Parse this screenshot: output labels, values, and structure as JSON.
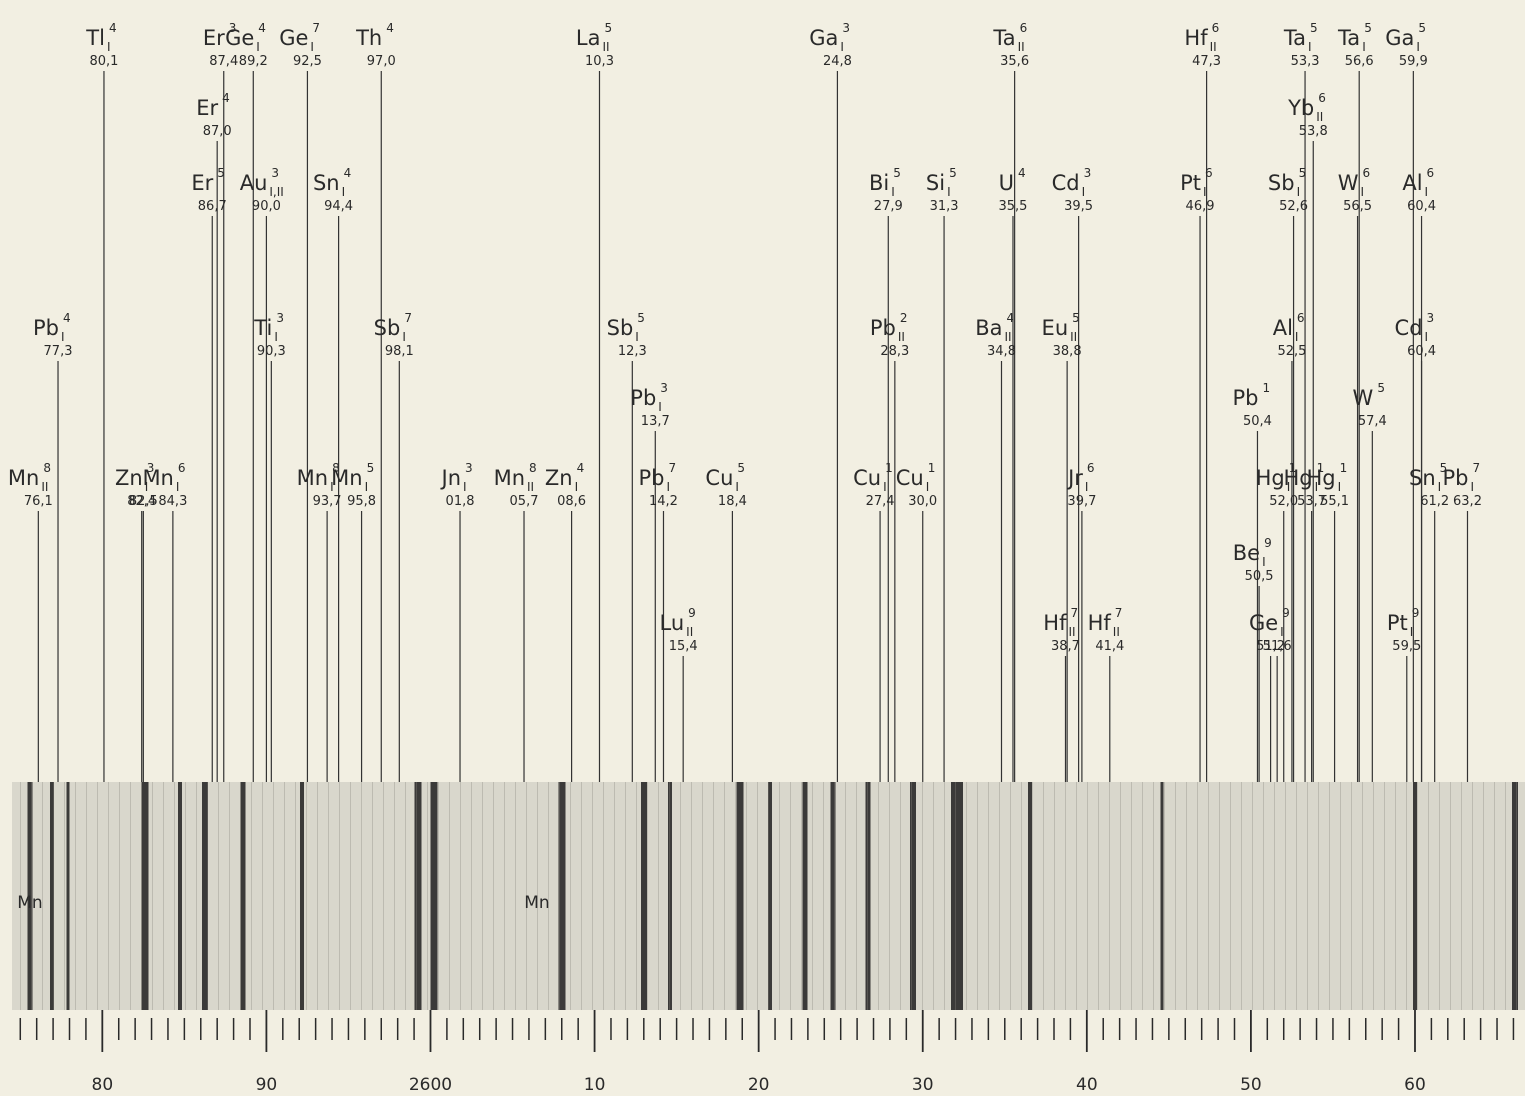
{
  "chart_data": {
    "type": "spectrum",
    "xlim": [
      2574.8,
      2666.4
    ],
    "xticks": [
      {
        "value": 2580,
        "label": "80"
      },
      {
        "value": 2590,
        "label": "90"
      },
      2600,
      {
        "value": 2610,
        "label": "10"
      },
      {
        "value": 2620,
        "label": "20"
      },
      {
        "value": 2630,
        "label": "30"
      },
      {
        "value": 2640,
        "label": "40"
      },
      {
        "value": 2650,
        "label": "50"
      },
      {
        "value": 2660,
        "label": "60"
      }
    ],
    "minor_xticks": [
      2575,
      2576,
      2577,
      2578,
      2579,
      2581,
      2582,
      2583,
      2584,
      2585,
      2586,
      2587,
      2588,
      2589,
      2591,
      2592,
      2593,
      2594,
      2595,
      2596,
      2597,
      2598,
      2599,
      2601,
      2602,
      2603,
      2604,
      2605,
      2606,
      2607,
      2608,
      2609,
      2611,
      2612,
      2613,
      2614,
      2615,
      2616,
      2617,
      2618,
      2619,
      2621,
      2622,
      2623,
      2624,
      2625,
      2626,
      2627,
      2628,
      2629,
      2631,
      2632,
      2633,
      2634,
      2635,
      2636,
      2637,
      2638,
      2639,
      2641,
      2642,
      2643,
      2644,
      2645,
      2646,
      2647,
      2648,
      2649,
      2651,
      2652,
      2653,
      2654,
      2655,
      2656,
      2657,
      2658,
      2659,
      2661,
      2662,
      2663,
      2664,
      2665,
      2666
    ],
    "strip_labels": [
      "Mn",
      "Mn"
    ],
    "lines": [
      {
        "element": "Tl",
        "ion": "I",
        "intensity": 4,
        "wavelength": {
          "value": 2580.1,
          "label": "80,1"
        }
      },
      {
        "element": "Er",
        "intensity": 3,
        "wavelength": {
          "value": 2587.4,
          "label": "87,4"
        }
      },
      {
        "element": "Ge",
        "ion": "I",
        "intensity": 4,
        "wavelength": {
          "value": 2589.2,
          "label": "89,2"
        }
      },
      {
        "element": "Ge",
        "ion": "I",
        "intensity": 7,
        "wavelength": {
          "value": 2592.5,
          "label": "92,5"
        }
      },
      {
        "element": "Th",
        "intensity": 4,
        "wavelength": {
          "value": 2597.0,
          "label": "97,0"
        }
      },
      {
        "element": "La",
        "ion": "II",
        "intensity": 5,
        "wavelength": {
          "value": 2610.3,
          "label": "10,3"
        }
      },
      {
        "element": "Ga",
        "ion": "I",
        "intensity": 3,
        "wavelength": {
          "value": 2624.8,
          "label": "24,8"
        }
      },
      {
        "element": "Ta",
        "ion": "II",
        "intensity": 6,
        "wavelength": {
          "value": 2635.6,
          "label": "35,6"
        }
      },
      {
        "element": "Hf",
        "ion": "II",
        "intensity": 6,
        "wavelength": {
          "value": 2647.3,
          "label": "47,3"
        }
      },
      {
        "element": "Ta",
        "ion": "I",
        "intensity": 5,
        "wavelength": {
          "value": 2653.3,
          "label": "53,3"
        }
      },
      {
        "element": "Ta",
        "ion": "I",
        "intensity": 5,
        "wavelength": {
          "value": 2656.6,
          "label": "56,6"
        }
      },
      {
        "element": "Ga",
        "ion": "I",
        "intensity": 5,
        "wavelength": {
          "value": 2659.9,
          "label": "59,9"
        }
      },
      {
        "element": "Er",
        "intensity": 4,
        "wavelength": {
          "value": 2587.0,
          "label": "87,0"
        }
      },
      {
        "element": "Yb",
        "ion": "II",
        "intensity": 6,
        "wavelength": {
          "value": 2653.8,
          "label": "53,8"
        }
      },
      {
        "element": "Er",
        "intensity": 5,
        "wavelength": {
          "value": 2586.7,
          "label": "86,7"
        }
      },
      {
        "element": "Au",
        "ion": "I,II",
        "intensity": 3,
        "wavelength": {
          "value": 2590.0,
          "label": "90,0"
        }
      },
      {
        "element": "Sn",
        "ion": "I",
        "intensity": 4,
        "wavelength": {
          "value": 2594.4,
          "label": "94,4"
        }
      },
      {
        "element": "Bi",
        "ion": "I",
        "intensity": 5,
        "wavelength": {
          "value": 2627.9,
          "label": "27,9"
        }
      },
      {
        "element": "Si",
        "ion": "I",
        "intensity": 5,
        "wavelength": {
          "value": 2631.3,
          "label": "31,3"
        }
      },
      {
        "element": "U",
        "intensity": 4,
        "wavelength": {
          "value": 2635.5,
          "label": "35,5"
        }
      },
      {
        "element": "Cd",
        "ion": "I",
        "intensity": 3,
        "wavelength": {
          "value": 2639.5,
          "label": "39,5"
        }
      },
      {
        "element": "Pt",
        "ion": "I",
        "intensity": 6,
        "wavelength": {
          "value": 2646.9,
          "label": "46,9"
        }
      },
      {
        "element": "Sb",
        "ion": "I",
        "intensity": 5,
        "wavelength": {
          "value": 2652.6,
          "label": "52,6"
        }
      },
      {
        "element": "W",
        "ion": "I",
        "intensity": 6,
        "wavelength": {
          "value": 2656.5,
          "label": "56,5"
        }
      },
      {
        "element": "Al",
        "ion": "I",
        "intensity": 6,
        "wavelength": {
          "value": 2660.4,
          "label": "60,4"
        }
      },
      {
        "element": "Pb",
        "ion": "I",
        "intensity": 4,
        "wavelength": {
          "value": 2577.3,
          "label": "77,3"
        }
      },
      {
        "element": "Ti",
        "ion": "I",
        "intensity": 3,
        "wavelength": {
          "value": 2590.3,
          "label": "90,3"
        }
      },
      {
        "element": "Sb",
        "ion": "I",
        "intensity": 7,
        "wavelength": {
          "value": 2598.1,
          "label": "98,1"
        }
      },
      {
        "element": "Sb",
        "ion": "I",
        "intensity": 5,
        "wavelength": {
          "value": 2612.3,
          "label": "12,3"
        }
      },
      {
        "element": "Pb",
        "ion": "II",
        "intensity": 2,
        "wavelength": {
          "value": 2628.3,
          "label": "28,3"
        }
      },
      {
        "element": "Ba",
        "ion": "II",
        "intensity": 4,
        "wavelength": {
          "value": 2634.8,
          "label": "34,8"
        }
      },
      {
        "element": "Eu",
        "ion": "II",
        "intensity": 5,
        "wavelength": {
          "value": 2638.8,
          "label": "38,8"
        }
      },
      {
        "element": "Al",
        "ion": "I",
        "intensity": 6,
        "wavelength": {
          "value": 2652.5,
          "label": "52,5"
        }
      },
      {
        "element": "Cd",
        "ion": "I",
        "intensity": 3,
        "wavelength": {
          "value": 2660.4,
          "label": "60,4"
        }
      },
      {
        "element": "Pb",
        "ion": "I",
        "intensity": 3,
        "wavelength": {
          "value": 2613.7,
          "label": "13,7"
        }
      },
      {
        "element": "Pb",
        "intensity": 1,
        "wavelength": {
          "value": 2650.4,
          "label": "50,4"
        }
      },
      {
        "element": "W",
        "intensity": 5,
        "wavelength": {
          "value": 2657.4,
          "label": "57,4"
        }
      },
      {
        "element": "Mn",
        "ion": "II",
        "intensity": 8,
        "wavelength": {
          "value": 2576.1,
          "label": "76,1"
        }
      },
      {
        "element": "Zn",
        "ion": "I",
        "intensity": 3,
        "wavelength": {
          "value": 2582.4,
          "label": "82,4"
        }
      },
      {
        "wavelength": {
          "value": 2582.5,
          "label": "82,5"
        }
      },
      {
        "element": "Mn",
        "ion": "I",
        "intensity": 6,
        "wavelength": {
          "value": 2584.3,
          "label": "84,3"
        }
      },
      {
        "element": "Mn",
        "ion": "I",
        "intensity": 8,
        "wavelength": {
          "value": 2593.7,
          "label": "93,7"
        }
      },
      {
        "element": "Mn",
        "ion": "I",
        "intensity": 5,
        "wavelength": {
          "value": 2595.8,
          "label": "95,8"
        }
      },
      {
        "element": "Jn",
        "ion": "I",
        "intensity": 3,
        "wavelength": {
          "value": 2601.8,
          "label": "01,8"
        }
      },
      {
        "element": "Mn",
        "ion": "II",
        "intensity": 8,
        "wavelength": {
          "value": 2605.7,
          "label": "05,7"
        }
      },
      {
        "element": "Zn",
        "ion": "I",
        "intensity": 4,
        "wavelength": {
          "value": 2608.6,
          "label": "08,6"
        }
      },
      {
        "element": "Pb",
        "ion": "I",
        "intensity": 7,
        "wavelength": {
          "value": 2614.2,
          "label": "14,2"
        }
      },
      {
        "element": "Cu",
        "ion": "I",
        "intensity": 5,
        "wavelength": {
          "value": 2618.4,
          "label": "18,4"
        }
      },
      {
        "element": "Cu",
        "ion": "I",
        "intensity": 1,
        "wavelength": {
          "value": 2627.4,
          "label": "27,4"
        }
      },
      {
        "element": "Cu",
        "ion": "I",
        "intensity": 1,
        "wavelength": {
          "value": 2630.0,
          "label": "30,0"
        }
      },
      {
        "element": "Jr",
        "ion": "I",
        "intensity": 6,
        "wavelength": {
          "value": 2639.7,
          "label": "39,7"
        }
      },
      {
        "element": "Hg",
        "ion": "I",
        "intensity": 1,
        "wavelength": {
          "value": 2652.0,
          "label": "52,0"
        }
      },
      {
        "element": "Hg",
        "ion": "I",
        "intensity": 1,
        "wavelength": {
          "value": 2653.7,
          "label": "53,7"
        }
      },
      {
        "element": "Hg",
        "ion": "I",
        "intensity": 1,
        "wavelength": {
          "value": 2655.1,
          "label": "55,1"
        }
      },
      {
        "element": "Sn",
        "ion": "I",
        "intensity": 5,
        "wavelength": {
          "value": 2661.2,
          "label": "61,2"
        }
      },
      {
        "element": "Pb",
        "ion": "I",
        "intensity": 7,
        "wavelength": {
          "value": 2663.2,
          "label": "63,2"
        }
      },
      {
        "element": "Be",
        "ion": "I",
        "intensity": 9,
        "wavelength": {
          "value": 2650.5,
          "label": "50,5"
        }
      },
      {
        "element": "Lu",
        "ion": "II",
        "intensity": 9,
        "wavelength": {
          "value": 2615.4,
          "label": "15,4"
        }
      },
      {
        "element": "Hf",
        "ion": "II",
        "intensity": 7,
        "wavelength": {
          "value": 2638.7,
          "label": "38,7"
        }
      },
      {
        "element": "Hf",
        "ion": "II",
        "intensity": 7,
        "wavelength": {
          "value": 2641.4,
          "label": "41,4"
        }
      },
      {
        "element": "Ge",
        "ion": "I",
        "intensity": 9,
        "wavelength": {
          "value": 2651.6,
          "label": "51,6"
        }
      },
      {
        "wavelength": {
          "value": 2651.2,
          "label": "51,2"
        }
      },
      {
        "element": "Pt",
        "ion": "I",
        "intensity": 9,
        "wavelength": {
          "value": 2659.5,
          "label": "59,5"
        }
      }
    ]
  }
}
